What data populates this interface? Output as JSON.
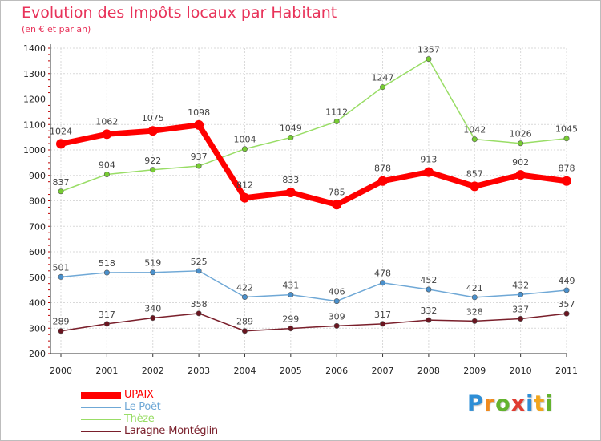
{
  "title": "Evolution des Impôts locaux par Habitant",
  "subtitle": "(en € et par an)",
  "colors": {
    "title": "#e8335a",
    "grid": "#d9d9d9",
    "axis": "#c00000"
  },
  "logo": {
    "text": "Proxiti",
    "letter_colors": [
      "#2e8ed6",
      "#f08a1e",
      "#63b32e",
      "#e03c31",
      "#2e8ed6",
      "#f2a51c",
      "#63b32e"
    ]
  },
  "chart_data": {
    "type": "line",
    "title": "Evolution des Impôts locaux par Habitant",
    "subtitle": "(en € et par an)",
    "xlabel": "",
    "ylabel": "",
    "categories": [
      "2000",
      "2001",
      "2002",
      "2003",
      "2004",
      "2005",
      "2006",
      "2007",
      "2008",
      "2009",
      "2010",
      "2011"
    ],
    "ylim": [
      200,
      1400
    ],
    "yticks": [
      200,
      300,
      400,
      500,
      600,
      700,
      800,
      900,
      1000,
      1100,
      1200,
      1300,
      1400
    ],
    "grid": true,
    "legend_position": "bottom-left",
    "series": [
      {
        "name": "Thèze",
        "color": "#99dd66",
        "marker": "#77cc33",
        "width": 1.5,
        "values": [
          837,
          904,
          922,
          937,
          1004,
          1049,
          1112,
          1247,
          1357,
          1042,
          1026,
          1045
        ]
      },
      {
        "name": "Le Poët",
        "color": "#6fa8d6",
        "marker": "#4a90cc",
        "width": 1.5,
        "values": [
          501,
          518,
          519,
          525,
          422,
          431,
          406,
          478,
          452,
          421,
          432,
          449
        ]
      },
      {
        "name": "Laragne-Montéglin",
        "color": "#7a1f2b",
        "marker": "#6a1520",
        "width": 1.5,
        "values": [
          289,
          317,
          340,
          358,
          289,
          299,
          309,
          317,
          332,
          328,
          337,
          357
        ]
      },
      {
        "name": "UPAIX",
        "color": "#ff0000",
        "marker": "#ff0000",
        "width": 7,
        "values": [
          1024,
          1062,
          1075,
          1098,
          812,
          833,
          785,
          878,
          913,
          857,
          902,
          878
        ]
      }
    ],
    "legend_order": [
      "UPAIX",
      "Le Poët",
      "Thèze",
      "Laragne-Montéglin"
    ]
  }
}
